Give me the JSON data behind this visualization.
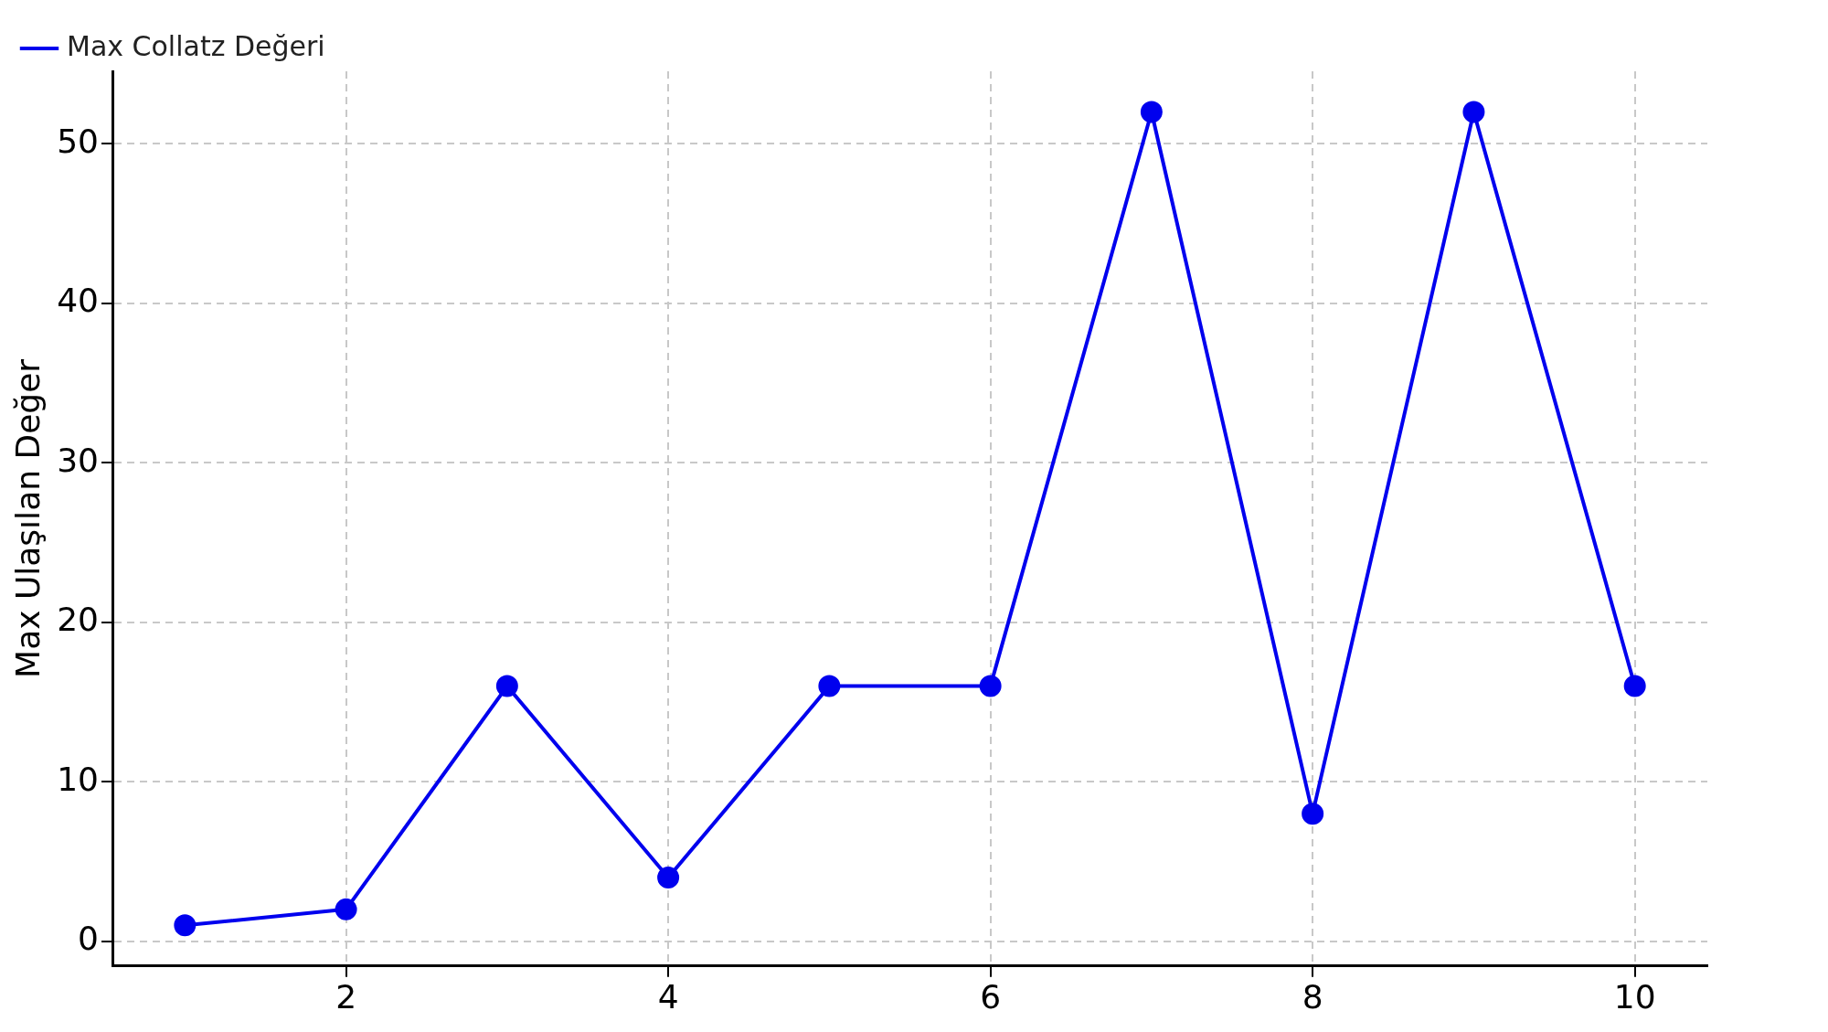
{
  "chart_data": {
    "type": "line",
    "ylabel": "Max Ulaşılan Değer",
    "x": [
      1,
      2,
      3,
      4,
      5,
      6,
      7,
      8,
      9,
      10
    ],
    "series": [
      {
        "name": "Max Collatz Değeri",
        "color": "#0000ee",
        "values": [
          1,
          2,
          16,
          4,
          16,
          16,
          52,
          8,
          52,
          16
        ]
      }
    ],
    "xlim": [
      0.55,
      10.45
    ],
    "xticks": [
      2,
      4,
      6,
      8,
      10
    ],
    "ylim": [
      -1.55,
      54.55
    ],
    "yticks": [
      0,
      10,
      20,
      30,
      40,
      50
    ],
    "grid": true,
    "legend": "top left",
    "marker": "circle",
    "line_style": "solid"
  }
}
